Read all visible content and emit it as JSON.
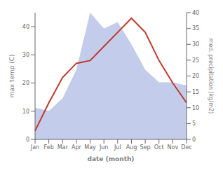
{
  "chart_data": {
    "type": "line",
    "categories": [
      "Jan",
      "Feb",
      "Mar",
      "Apr",
      "May",
      "Jun",
      "Jul",
      "Aug",
      "Sep",
      "Oct",
      "Nov",
      "Dec"
    ],
    "xlabel": "date (month)",
    "ylabel": "max temp (C)",
    "y2label": "med. precipitation (kg/m2)",
    "ylim": [
      0,
      45
    ],
    "yticks": [
      0,
      10,
      20,
      30,
      40
    ],
    "y2lim": [
      0,
      40
    ],
    "y2ticks": [
      0,
      5,
      10,
      15,
      20,
      25,
      30,
      35,
      40
    ],
    "grid": false,
    "series": [
      {
        "type": "area",
        "color": "#b8c4e8",
        "axis": "y2",
        "values": [
          10,
          9,
          13,
          22,
          40,
          35,
          37,
          30,
          22,
          18,
          18,
          17
        ]
      },
      {
        "type": "line",
        "color": "#c0392b",
        "values": [
          3,
          13,
          22,
          27,
          28,
          33,
          38,
          43,
          38,
          28,
          20,
          13
        ]
      }
    ]
  }
}
